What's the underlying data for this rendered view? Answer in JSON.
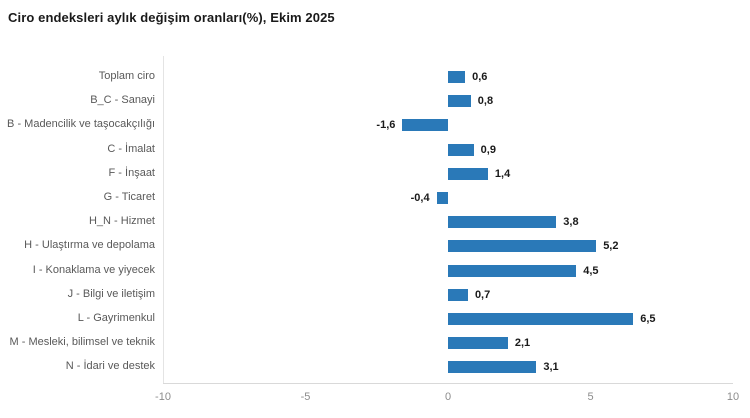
{
  "chart_data": {
    "type": "bar",
    "orientation": "horizontal",
    "title": "Ciro endeksleri aylık değişim oranları(%), Ekim 2025",
    "categories": [
      "Toplam ciro",
      "B_C - Sanayi",
      "B - Madencilik ve taşocakçılığı",
      "C - İmalat",
      "F - İnşaat",
      "G - Ticaret",
      "H_N - Hizmet",
      "H - Ulaştırma ve depolama",
      "I - Konaklama ve yiyecek",
      "J - Bilgi ve iletişim",
      "L - Gayrimenkul",
      "M - Mesleki, bilimsel ve teknik",
      "N - İdari ve destek"
    ],
    "values": [
      0.6,
      0.8,
      -1.6,
      0.9,
      1.4,
      -0.4,
      3.8,
      5.2,
      4.5,
      0.7,
      6.5,
      2.1,
      3.1
    ],
    "value_labels": [
      "0,6",
      "0,8",
      "-1,6",
      "0,9",
      "1,4",
      "-0,4",
      "3,8",
      "5,2",
      "4,5",
      "0,7",
      "6,5",
      "2,1",
      "3,1"
    ],
    "xlabel": "",
    "ylabel": "",
    "xlim": [
      -10,
      10
    ],
    "x_ticks": [
      -10,
      -5,
      0,
      5,
      10
    ],
    "x_tick_labels": [
      "-10",
      "-5",
      "0",
      "5",
      "10"
    ],
    "grid": false,
    "legend": false,
    "colors": {
      "bar": "#2a79b8",
      "title": "#1a1a1a",
      "category_label": "#595959",
      "value_label": "#1a1a1a",
      "tick_label": "#8c8c8c",
      "axis_line": "#d9d9d9",
      "plot_border": "#e4e4e4"
    }
  }
}
